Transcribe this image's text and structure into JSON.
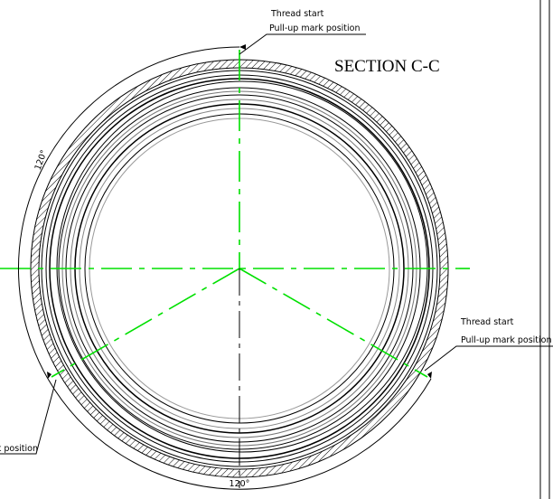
{
  "title": "SECTION C-C",
  "callouts": [
    {
      "line1": "Thread start",
      "line2": "Pull-up mark position"
    },
    {
      "line1": "Thread start",
      "line2": "Pull-up mark position"
    },
    {
      "line2": "Pull-up mark position"
    }
  ],
  "dimensions": [
    {
      "label": "120°"
    },
    {
      "label": "120°"
    }
  ]
}
